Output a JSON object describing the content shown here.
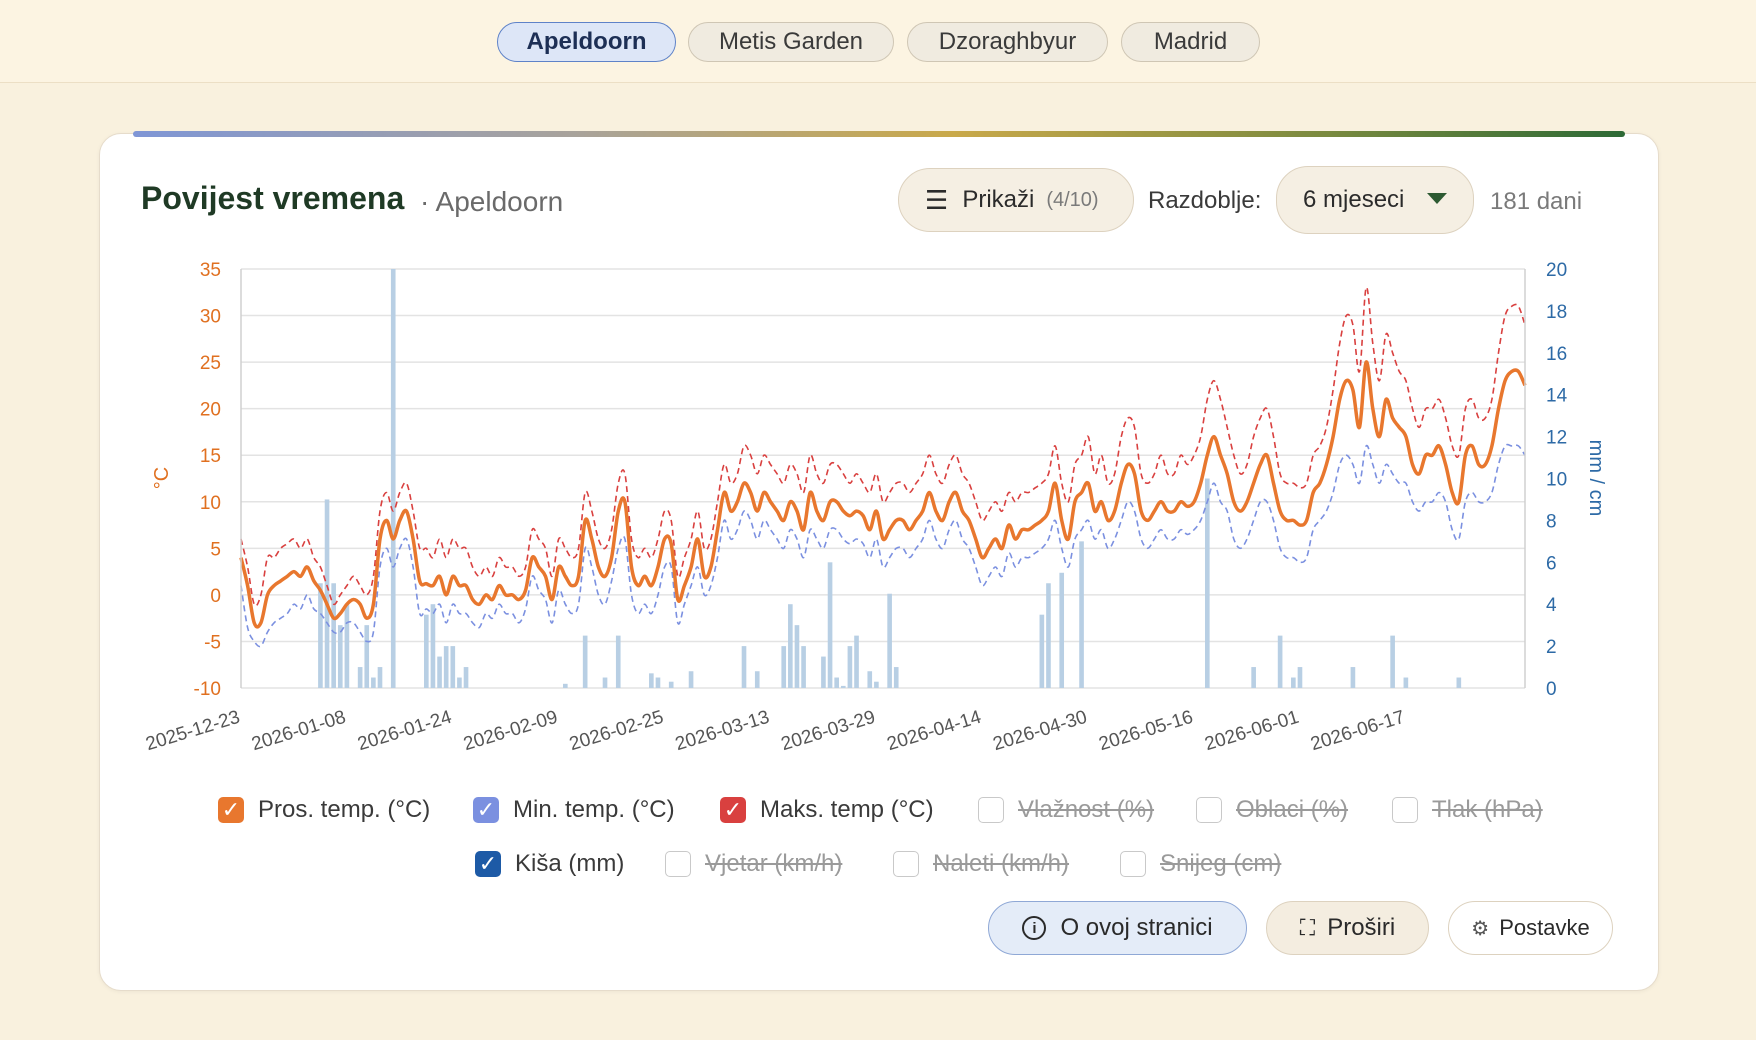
{
  "city_tabs": [
    {
      "label": "Apeldoorn",
      "active": true
    },
    {
      "label": "Metis Garden",
      "active": false
    },
    {
      "label": "Dzoraghbyur",
      "active": false
    },
    {
      "label": "Madrid",
      "active": false
    }
  ],
  "header": {
    "title": "Povijest vremena",
    "subtitle": "· Apeldoorn",
    "show_button": {
      "label": "Prikaži",
      "count": "(4/10)",
      "icon": "menu-icon"
    },
    "period_label": "Razdoblje:",
    "period_value": "6 mjeseci",
    "days": "181 dani"
  },
  "legend": [
    {
      "label": "Pros. temp. (°C)",
      "checked": true,
      "color": "#e8772e"
    },
    {
      "label": "Min. temp. (°C)",
      "checked": true,
      "color": "#7b90e0"
    },
    {
      "label": "Maks. temp (°C)",
      "checked": true,
      "color": "#d9403f"
    },
    {
      "label": "Vlažnost (%)",
      "checked": false
    },
    {
      "label": "Oblaci (%)",
      "checked": false
    },
    {
      "label": "Tlak (hPa)",
      "checked": false
    },
    {
      "label": "Kiša (mm)",
      "checked": true,
      "color": "#1d5aa6"
    },
    {
      "label": "Vjetar (km/h)",
      "checked": false
    },
    {
      "label": "Naleti (km/h)",
      "checked": false
    },
    {
      "label": "Snijeg (cm)",
      "checked": false
    }
  ],
  "footer_buttons": {
    "about": {
      "label": "O ovoj stranici",
      "icon": "info-icon"
    },
    "expand": {
      "label": "Proširi",
      "icon": "expand-icon"
    },
    "settings": {
      "label": "Postavke",
      "icon": "gear-icon"
    }
  },
  "chart_data": {
    "type": "line",
    "ylabel_left": "°C",
    "ylabel_right": "mm / cm",
    "ylim_left": [
      -10,
      35
    ],
    "ylim_right": [
      0,
      20
    ],
    "left_ticks": [
      -10,
      -5,
      0,
      5,
      10,
      15,
      20,
      25,
      30,
      35
    ],
    "right_ticks": [
      0,
      2,
      4,
      6,
      8,
      10,
      12,
      14,
      16,
      18,
      20
    ],
    "x_tick_labels": [
      "2025-12-23",
      "2026-01-08",
      "2026-01-24",
      "2026-02-09",
      "2026-02-25",
      "2026-03-13",
      "2026-03-29",
      "2026-04-14",
      "2026-04-30",
      "2026-05-16",
      "2026-06-01",
      "2026-06-17"
    ],
    "grid": true,
    "series": [
      {
        "name": "Pros. temp. (°C)",
        "color": "#e8772e",
        "axis": "left",
        "style": "solid",
        "values": [
          4,
          1,
          -3,
          -3,
          0,
          1,
          1.5,
          2,
          2.5,
          2,
          3,
          1.5,
          0.5,
          -1,
          -2.5,
          -2,
          -1,
          -0.5,
          -1,
          -2.5,
          -1,
          6,
          8,
          6,
          8,
          9,
          6,
          1.5,
          1.2,
          1,
          2,
          0,
          2,
          1,
          1,
          -0.5,
          -1,
          0,
          -0.5,
          1,
          0,
          0,
          -0.5,
          0.5,
          4,
          3,
          2,
          -0.5,
          3,
          2,
          1,
          2,
          8,
          6,
          3,
          2,
          4,
          9,
          10,
          3,
          1,
          2,
          1,
          3,
          6,
          5.5,
          -0.5,
          1,
          3,
          6,
          2,
          3,
          7,
          11,
          9,
          10,
          12,
          11,
          9,
          11,
          10,
          9,
          8,
          10,
          9,
          7,
          11,
          9,
          8,
          10,
          10,
          9,
          8.5,
          9,
          8.5,
          7,
          9,
          6,
          7,
          8,
          8,
          7,
          8,
          9,
          11,
          9,
          8,
          10,
          11,
          9,
          8,
          6,
          4,
          5,
          6,
          5,
          7.5,
          6,
          7,
          7,
          7.5,
          8,
          9,
          12,
          8,
          6,
          10,
          11,
          12,
          9,
          10,
          8,
          9,
          12,
          14,
          13,
          9,
          8,
          9,
          10,
          9,
          9,
          10,
          9.5,
          10,
          12,
          15,
          17,
          15,
          13,
          10,
          9,
          10,
          12,
          14,
          15,
          12,
          9,
          8,
          8,
          7.5,
          8,
          11,
          12,
          14,
          17,
          21,
          23,
          22,
          18,
          25,
          20,
          17,
          21,
          19,
          18,
          17,
          14,
          13,
          15,
          15,
          16,
          14,
          11,
          10,
          15,
          16,
          14,
          14,
          16,
          20,
          23,
          24,
          24,
          22.5
        ]
      },
      {
        "name": "Min. temp. (°C)",
        "color": "#7b90e0",
        "axis": "left",
        "style": "dashed",
        "values": [
          1,
          -3.5,
          -5,
          -5.5,
          -4,
          -3,
          -2.5,
          -2,
          -1,
          -1.5,
          0,
          -1.5,
          -2,
          -3,
          -4,
          -4,
          -3,
          -3,
          -4,
          -5,
          -4,
          3,
          5,
          3,
          5,
          6,
          3,
          -2,
          -1.5,
          -2,
          -1,
          -3,
          -1,
          -2,
          -2,
          -3,
          -3.5,
          -2,
          -2.5,
          -1,
          -2,
          -2,
          -3,
          -1.5,
          2,
          0.5,
          -0.5,
          -3,
          0.5,
          -1,
          -2,
          -1,
          5,
          3,
          0,
          -1,
          1.5,
          5,
          6,
          0,
          -2,
          -1,
          -2,
          0,
          3,
          3,
          -3,
          -1,
          1,
          3,
          0,
          1,
          4,
          8,
          6,
          7,
          9,
          8,
          6,
          8,
          7,
          6,
          5,
          7,
          6,
          4,
          7,
          6,
          5,
          7,
          7,
          6,
          5.5,
          6,
          5.5,
          4,
          6,
          3,
          4,
          5,
          5,
          4,
          5,
          6,
          8,
          6,
          5,
          7,
          8,
          6,
          5,
          3,
          1,
          2,
          3,
          2,
          4.5,
          3,
          4,
          4,
          4.5,
          5,
          6,
          8,
          5,
          3,
          6,
          7,
          8,
          6,
          7,
          5,
          6,
          8,
          10,
          9,
          6,
          5,
          6,
          7,
          6,
          6,
          7,
          6.5,
          7,
          8,
          10,
          12,
          10,
          9,
          6,
          5,
          6,
          8,
          10,
          10,
          8,
          5,
          4,
          4,
          3.5,
          4,
          7,
          8,
          9,
          11,
          14,
          15,
          14,
          12,
          16,
          14,
          12,
          14,
          13,
          12,
          12,
          10,
          9,
          10,
          10,
          11,
          10,
          7,
          6,
          10,
          11,
          10,
          10,
          11,
          14,
          16,
          16,
          16,
          15
        ]
      },
      {
        "name": "Maks. temp (°C)",
        "color": "#d9403f",
        "axis": "left",
        "style": "dashed",
        "values": [
          6,
          3,
          -1,
          0,
          4,
          4,
          5,
          5.5,
          6,
          5,
          6,
          4,
          3,
          1,
          -1,
          0,
          1,
          2,
          1,
          0,
          2,
          9,
          11,
          9,
          11,
          12,
          9,
          5,
          5,
          4,
          6,
          4,
          6,
          5,
          5,
          3,
          2,
          3,
          2,
          4,
          3,
          3,
          2,
          3,
          7,
          6,
          5,
          2,
          6,
          5,
          4,
          5,
          11,
          9,
          6,
          5,
          7,
          12,
          13,
          6,
          4,
          5,
          4,
          6,
          9,
          8,
          2,
          4,
          6,
          9,
          5,
          6,
          10,
          14,
          12,
          13,
          16,
          15,
          13,
          15,
          14,
          13,
          12,
          14,
          13,
          11,
          15,
          13,
          12,
          14,
          14,
          13,
          12,
          13,
          12,
          11,
          13,
          10,
          11,
          12,
          12,
          11,
          12,
          13,
          15,
          13,
          12,
          14,
          15,
          13,
          12,
          10,
          8,
          9,
          10,
          9,
          11,
          10,
          11,
          11,
          11.5,
          12,
          13,
          16,
          12,
          10,
          14,
          15,
          17,
          13,
          15,
          12,
          13,
          17,
          19,
          18,
          13,
          12,
          13,
          15,
          13,
          13,
          15,
          14,
          15,
          17,
          21,
          23,
          21,
          18,
          15,
          13,
          14,
          17,
          19,
          20,
          17,
          13,
          12,
          12,
          11.5,
          12,
          15,
          16,
          18,
          22,
          27,
          30,
          29,
          24,
          33,
          27,
          23,
          28,
          26,
          24,
          23,
          20,
          18,
          20,
          20,
          21,
          19,
          16,
          15,
          20,
          21,
          19,
          19,
          21,
          26,
          30,
          31,
          31,
          29
        ]
      }
    ],
    "bars": {
      "name": "Kiša (mm)",
      "color": "#b8cfe4",
      "axis": "right",
      "values": [
        0,
        0,
        0,
        0,
        0,
        0,
        0,
        0,
        0,
        0,
        0,
        0,
        5,
        9,
        5,
        3,
        4,
        0,
        1,
        3,
        0.5,
        1,
        0,
        20,
        0,
        0,
        0,
        0,
        3.5,
        4,
        1.5,
        2,
        2,
        0.5,
        1,
        0,
        0,
        0,
        0,
        0,
        0,
        0,
        0,
        0,
        0,
        0,
        0,
        0,
        0,
        0.2,
        0,
        0,
        2.5,
        0,
        0,
        0.5,
        0,
        2.5,
        0,
        0,
        0,
        0,
        0.7,
        0.5,
        0,
        0.3,
        0,
        0,
        0.8,
        0,
        0,
        0,
        0,
        0,
        0,
        0,
        2,
        0,
        0.8,
        0,
        0,
        0,
        2,
        4,
        3,
        2,
        0,
        0,
        1.5,
        6,
        0.5,
        0.1,
        2,
        2.5,
        0,
        0.8,
        0.3,
        0,
        4.5,
        1,
        0,
        0,
        0,
        0,
        0,
        0,
        0,
        0,
        0,
        0,
        0,
        0,
        0,
        0,
        0,
        0,
        0,
        0,
        0,
        0,
        0,
        3.5,
        5,
        0,
        5.5,
        0,
        0,
        7,
        0,
        0,
        0,
        0,
        0,
        0,
        0,
        0,
        0,
        0,
        0,
        0,
        0,
        0,
        0,
        0,
        0,
        0,
        10,
        0,
        0,
        0,
        0,
        0,
        0,
        1,
        0,
        0,
        0,
        2.5,
        0,
        0.5,
        1,
        0,
        0,
        0,
        0,
        0,
        0,
        0,
        1,
        0,
        0,
        0,
        0,
        0,
        2.5,
        0,
        0.5,
        0,
        0,
        0,
        0,
        0,
        0,
        0,
        0.5,
        0,
        0,
        0,
        0,
        0
      ]
    }
  }
}
